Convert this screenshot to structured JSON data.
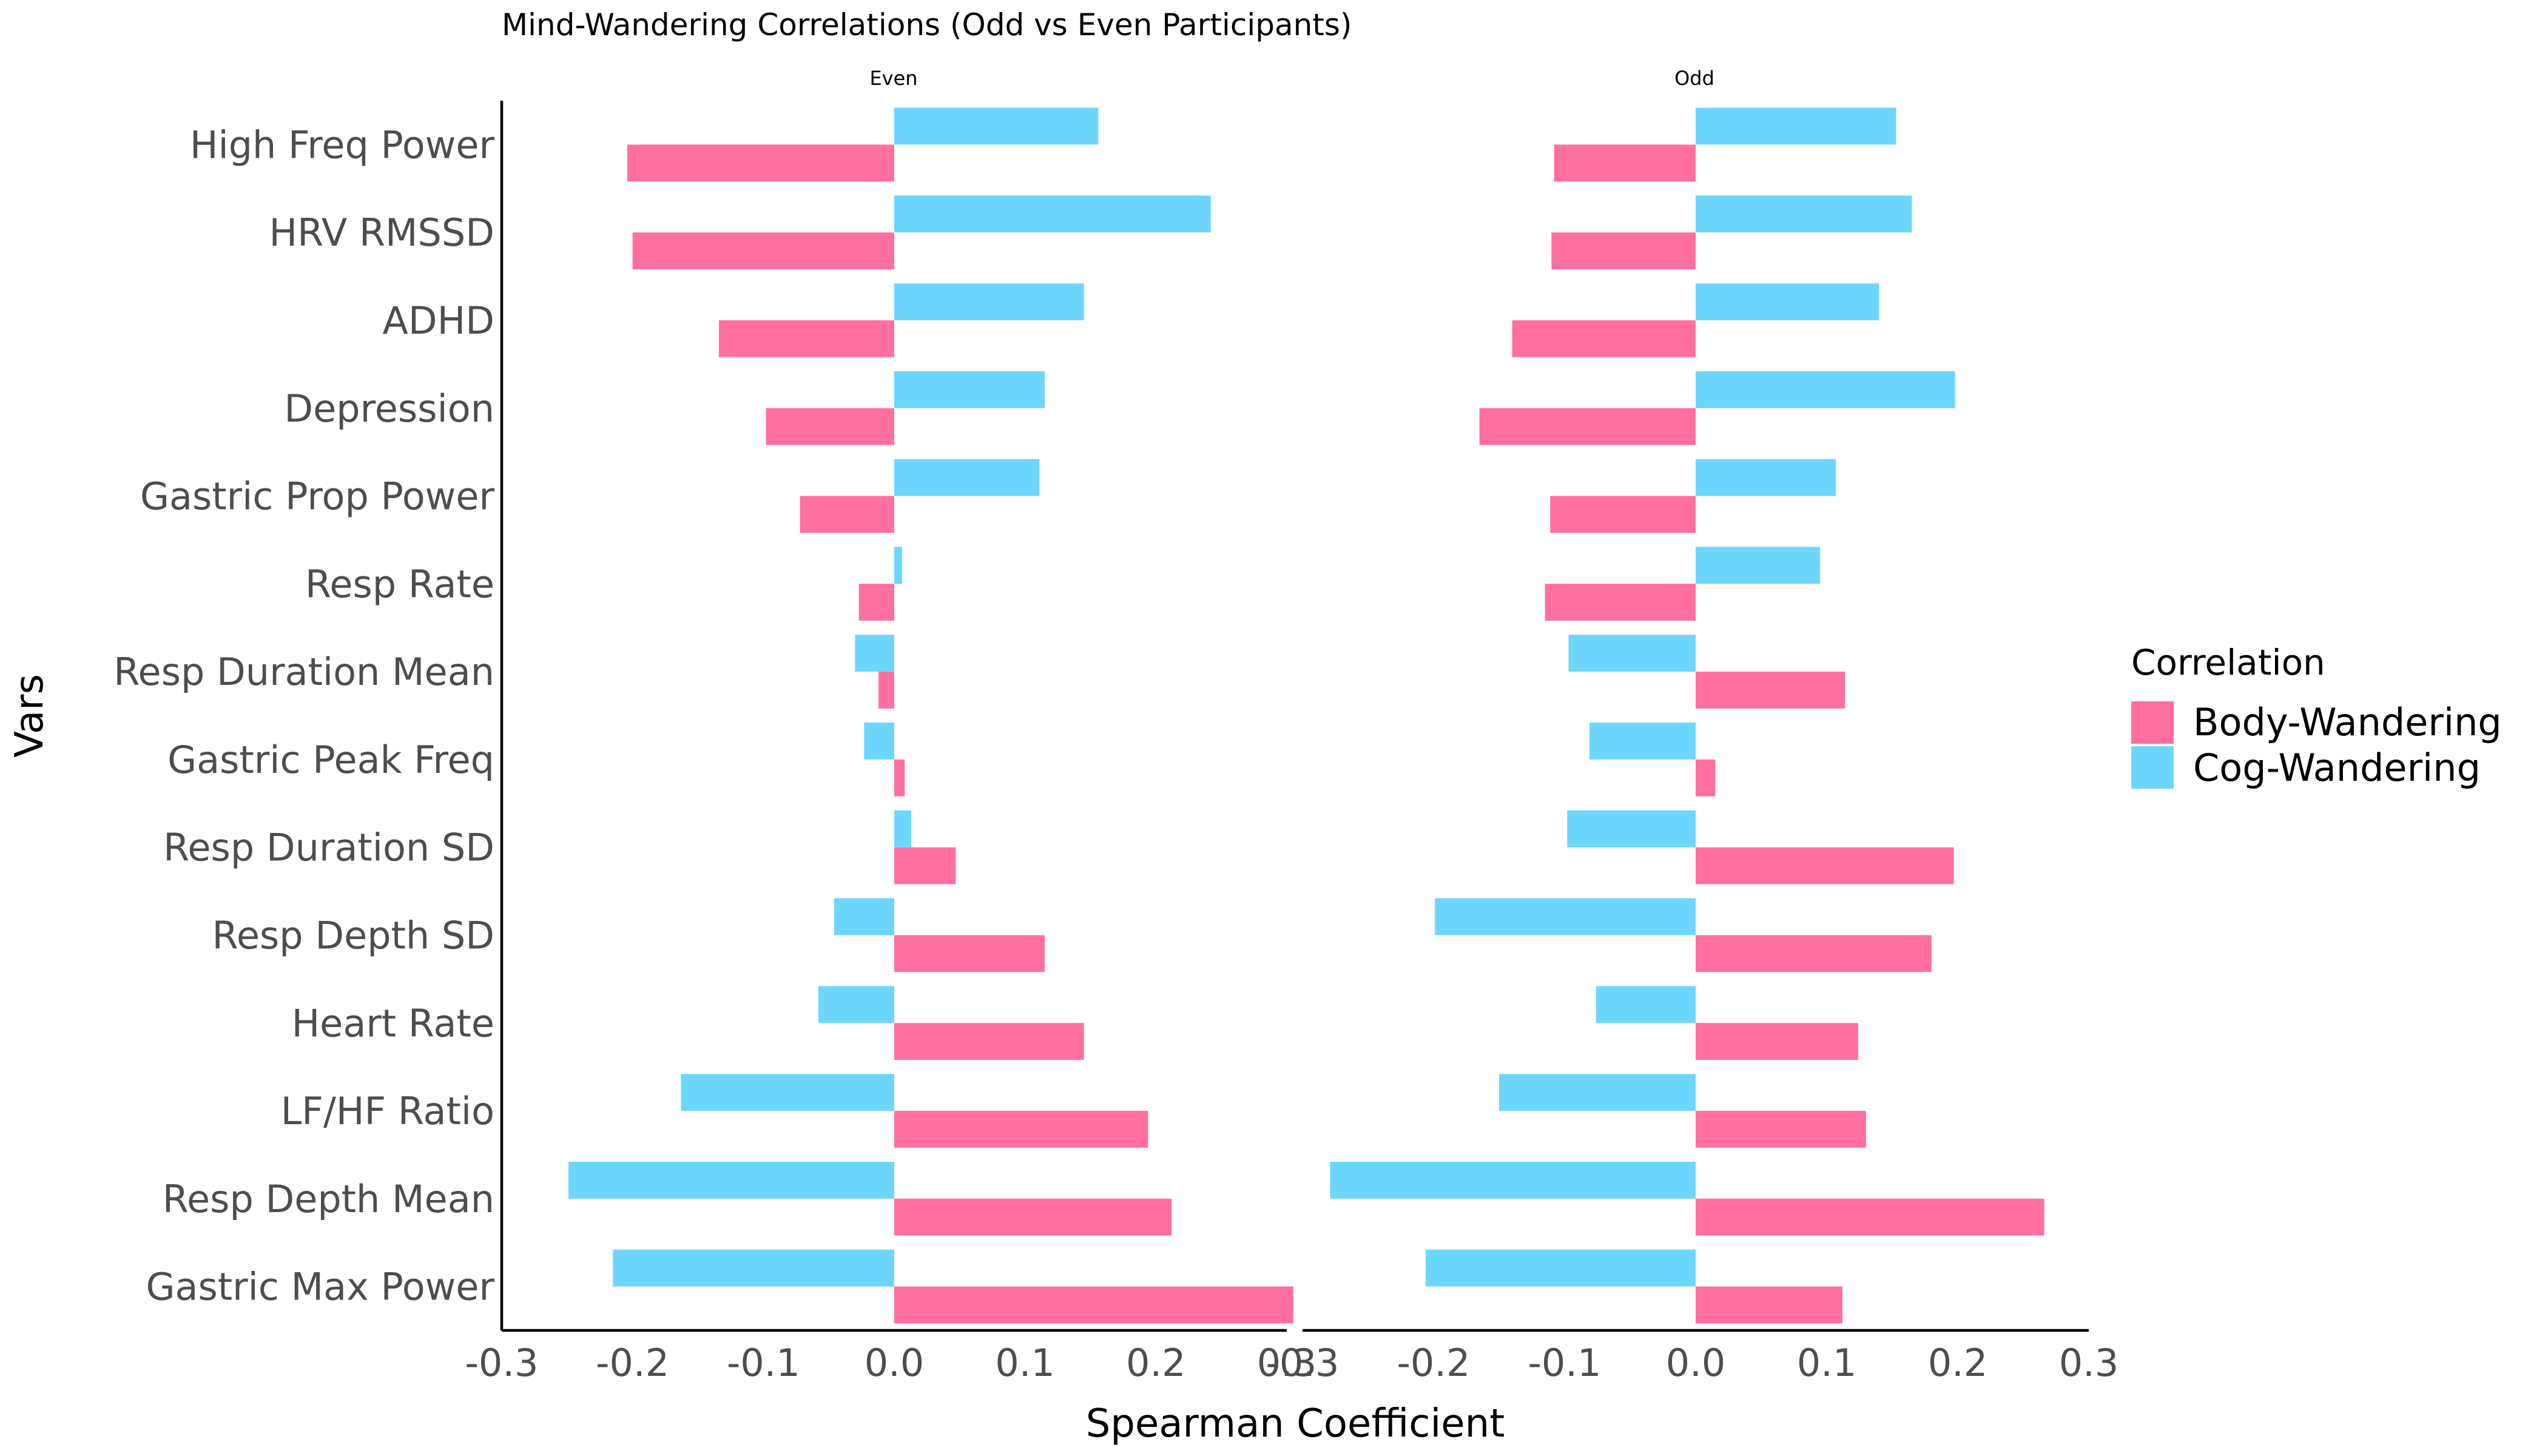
{
  "chart_data": {
    "type": "bar",
    "orientation": "horizontal",
    "title": "Mind-Wandering Correlations (Odd vs Even Participants)",
    "xlabel": "Spearman Coefficient",
    "ylabel": "Vars",
    "xlim": [
      -0.3,
      0.3
    ],
    "xticks": [
      "-0.3",
      "-0.2",
      "-0.1",
      "0.0",
      "0.1",
      "0.2",
      "0.3"
    ],
    "grid": false,
    "legend": {
      "title": "Correlation",
      "position": "right",
      "entries": [
        "Body-Wandering",
        "Cog-Wandering"
      ]
    },
    "colors": {
      "Body-Wandering": "#ff6f9f",
      "Cog-Wandering": "#6dd6fd"
    },
    "categories": [
      "High Freq Power",
      "HRV RMSSD",
      "ADHD",
      "Depression",
      "Gastric Prop Power",
      "Resp Rate",
      "Resp Duration Mean",
      "Gastric Peak Freq",
      "Resp Duration SD",
      "Resp Depth SD",
      "Heart Rate",
      "LF/HF Ratio",
      "Resp Depth Mean",
      "Gastric Max Power"
    ],
    "panels": [
      {
        "label": "Even",
        "series": [
          {
            "name": "Body-Wandering",
            "values": [
              -0.204,
              -0.2,
              -0.134,
              -0.098,
              -0.072,
              -0.027,
              -0.012,
              0.008,
              0.047,
              0.115,
              0.145,
              0.194,
              0.212,
              0.305
            ]
          },
          {
            "name": "Cog-Wandering",
            "values": [
              0.156,
              0.242,
              0.145,
              0.115,
              0.111,
              0.006,
              -0.03,
              -0.023,
              0.013,
              -0.046,
              -0.058,
              -0.163,
              -0.249,
              -0.215
            ]
          }
        ]
      },
      {
        "label": "Odd",
        "series": [
          {
            "name": "Body-Wandering",
            "values": [
              -0.108,
              -0.11,
              -0.14,
              -0.165,
              -0.111,
              -0.115,
              0.114,
              0.015,
              0.197,
              0.18,
              0.124,
              0.13,
              0.266,
              0.112
            ]
          },
          {
            "name": "Cog-Wandering",
            "values": [
              0.153,
              0.165,
              0.14,
              0.198,
              0.107,
              0.095,
              -0.097,
              -0.081,
              -0.098,
              -0.199,
              -0.076,
              -0.15,
              -0.279,
              -0.206
            ]
          }
        ]
      }
    ]
  }
}
